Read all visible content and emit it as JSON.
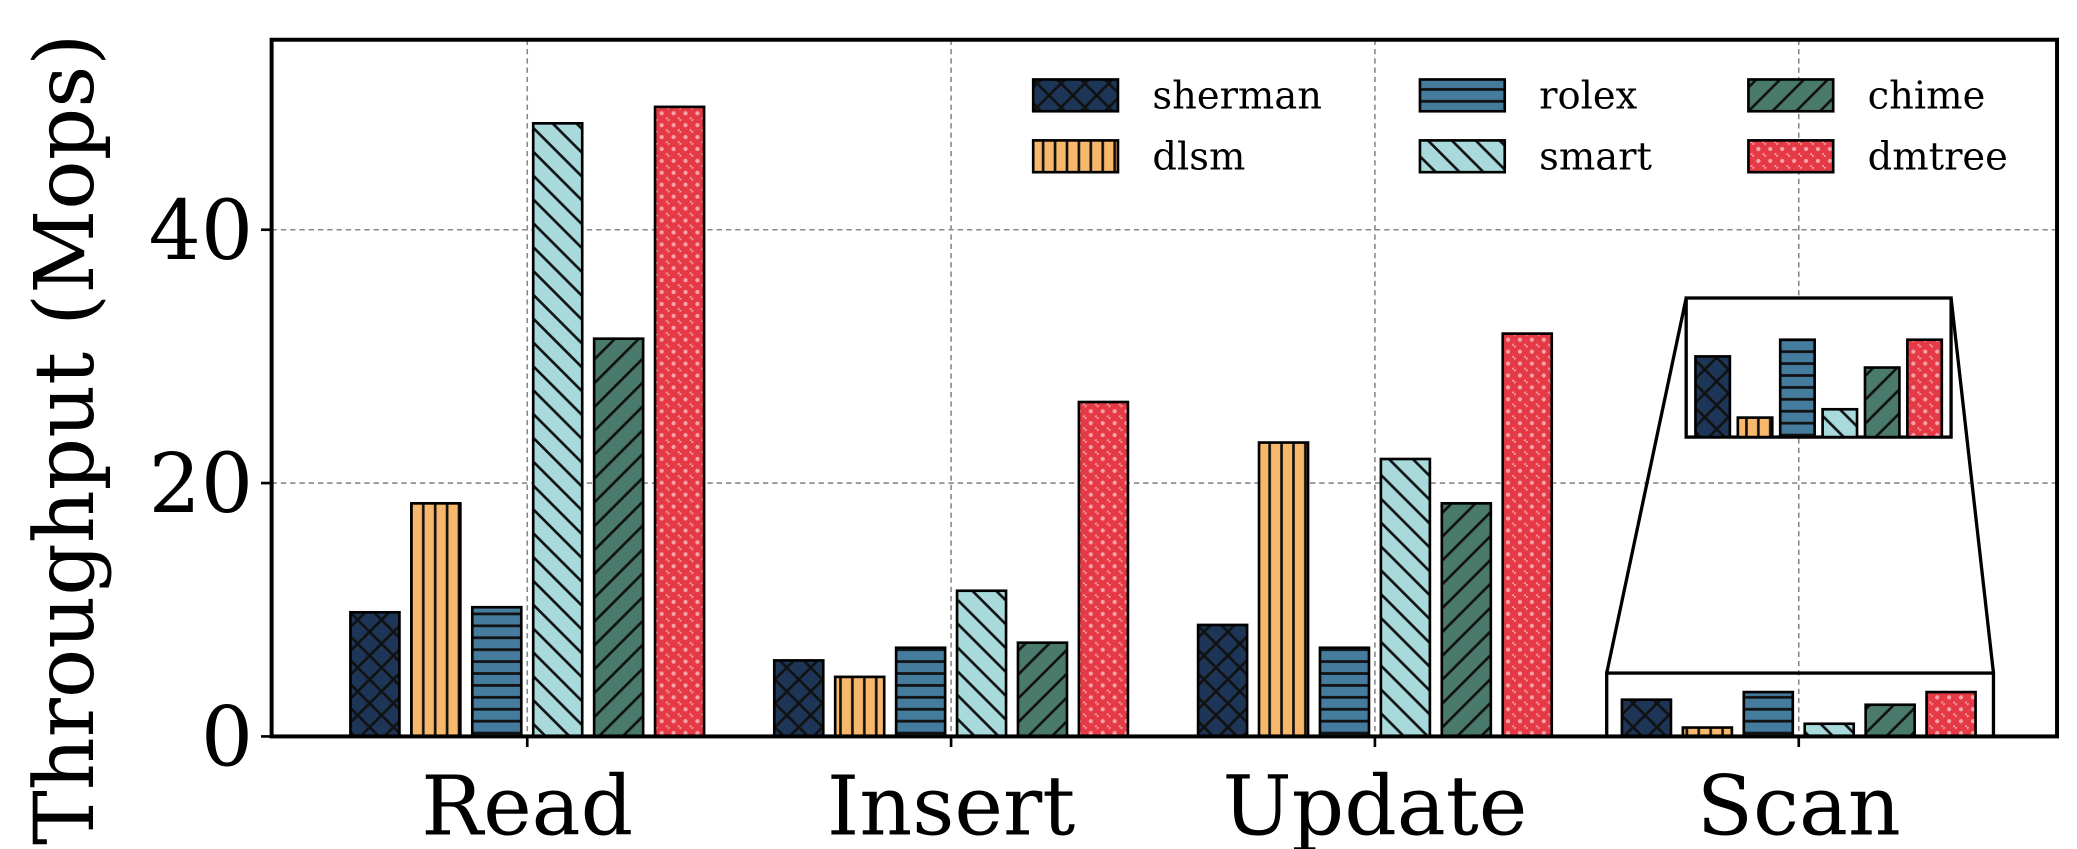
{
  "chart_data": {
    "type": "bar",
    "y_label": "Throughput (Mops)",
    "categories": [
      "Read",
      "Insert",
      "Update",
      "Scan"
    ],
    "series": [
      {
        "name": "sherman",
        "color": "#1d3557",
        "hatch": "cross",
        "values": [
          9.8,
          6.0,
          8.8,
          2.9
        ]
      },
      {
        "name": "dlsm",
        "color": "#f7b86b",
        "hatch": "vertical",
        "values": [
          18.4,
          4.7,
          23.2,
          0.7
        ]
      },
      {
        "name": "rolex",
        "color": "#457b9d",
        "hatch": "horizontal",
        "values": [
          10.2,
          7.0,
          7.0,
          3.5
        ]
      },
      {
        "name": "smart",
        "color": "#a8dadc",
        "hatch": "backslash",
        "values": [
          48.4,
          11.5,
          21.9,
          1.0
        ]
      },
      {
        "name": "chime",
        "color": "#4a7a6c",
        "hatch": "slash",
        "values": [
          31.4,
          7.4,
          18.4,
          2.5
        ]
      },
      {
        "name": "dmtree",
        "color": "#e63946",
        "hatch": "dots",
        "values": [
          49.7,
          26.4,
          31.8,
          3.5
        ]
      }
    ],
    "ylim": [
      0,
      55
    ],
    "yticks": [
      0,
      20,
      40
    ],
    "grid": true,
    "inset_category": 3,
    "inset_ylim": [
      0,
      5
    ]
  }
}
